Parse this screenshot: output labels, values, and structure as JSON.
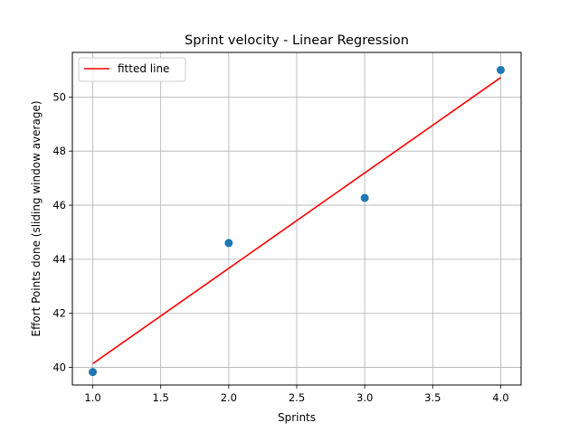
{
  "chart_data": {
    "type": "scatter",
    "title": "Sprint velocity - Linear Regression",
    "xlabel": "Sprints",
    "ylabel": "Effort Points done (sliding window average)",
    "xlim": [
      0.85,
      4.15
    ],
    "ylim": [
      39.35,
      51.65
    ],
    "grid": true,
    "x_ticks": [
      1.0,
      1.5,
      2.0,
      2.5,
      3.0,
      3.5,
      4.0
    ],
    "x_tick_labels": [
      "1.0",
      "1.5",
      "2.0",
      "2.5",
      "3.0",
      "3.5",
      "4.0"
    ],
    "y_ticks": [
      40,
      42,
      44,
      46,
      48,
      50
    ],
    "y_tick_labels": [
      "40",
      "42",
      "44",
      "46",
      "48",
      "50"
    ],
    "points": {
      "x": [
        1,
        2,
        3,
        4
      ],
      "y": [
        39.83,
        44.6,
        46.27,
        51.0
      ],
      "color": "#1f77b4"
    },
    "fitted_line": {
      "name": "fitted line",
      "x": [
        1,
        4
      ],
      "y": [
        40.14,
        50.72
      ],
      "color": "#ff0000"
    },
    "legend_position": "top-left"
  }
}
